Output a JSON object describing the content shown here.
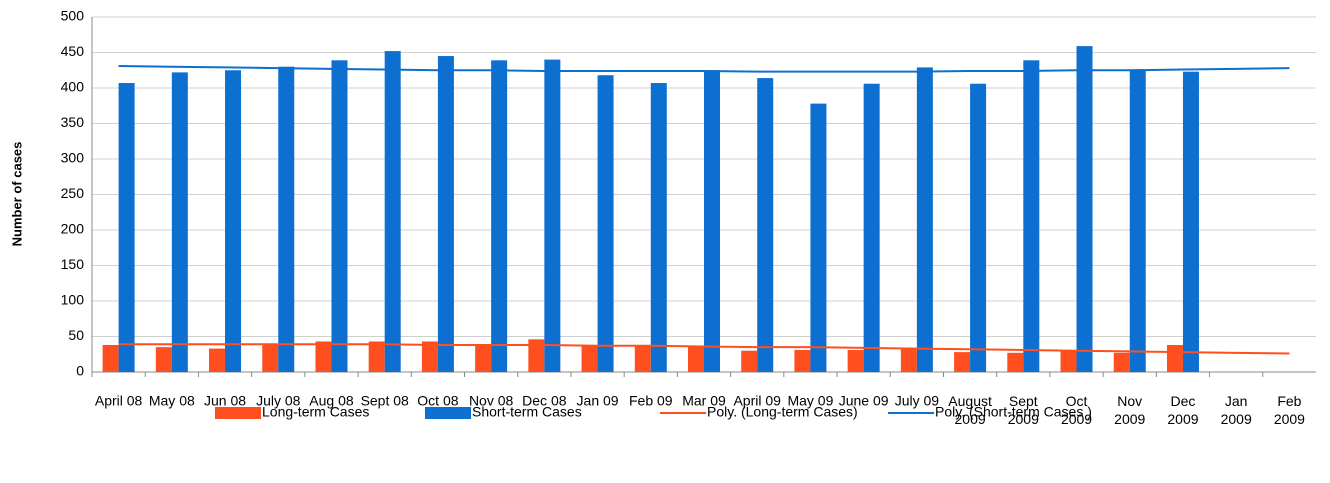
{
  "chart_data": {
    "type": "bar",
    "y_label": "Number of cases",
    "categories": [
      "April 08",
      "May 08",
      "Jun 08",
      "July 08",
      "Aug 08",
      "Sept 08",
      "Oct 08",
      "Nov 08",
      "Dec 08",
      "Jan 09",
      "Feb 09",
      "Mar 09",
      "April 09",
      "May 09",
      "June 09",
      "July 09",
      "August 2009",
      "Sept 2009",
      "Oct 2009",
      "Nov 2009",
      "Dec 2009",
      "Jan 2009",
      "Feb 2009"
    ],
    "series": [
      {
        "name": "Long-term Cases",
        "color": "#ff4f1f",
        "kind": "bar",
        "values": [
          38,
          35,
          33,
          38,
          43,
          43,
          43,
          38,
          46,
          37,
          38,
          37,
          30,
          31,
          31,
          34,
          28,
          27,
          31,
          27,
          38,
          null,
          null
        ]
      },
      {
        "name": "Short-term Cases",
        "color": "#0d6fcf",
        "kind": "bar",
        "values": [
          407,
          422,
          425,
          430,
          439,
          452,
          445,
          439,
          440,
          418,
          407,
          425,
          414,
          378,
          406,
          429,
          406,
          439,
          459,
          425,
          423,
          null,
          null
        ]
      },
      {
        "name": "Poly. (Long-term Cases)",
        "color": "#ff4f1f",
        "kind": "line",
        "values": [
          39,
          39,
          39,
          39,
          39,
          39,
          38,
          38,
          38,
          37,
          37,
          36,
          35,
          35,
          34,
          33,
          32,
          31,
          30,
          29,
          28,
          27,
          26
        ]
      },
      {
        "name": "Poly. (Short-term Cases )",
        "color": "#0d6fcf",
        "kind": "line",
        "values": [
          431,
          430,
          429,
          428,
          427,
          426,
          425,
          425,
          424,
          424,
          424,
          424,
          423,
          423,
          423,
          423,
          424,
          424,
          425,
          425,
          426,
          427,
          428
        ]
      }
    ],
    "ylim": [
      0,
      500
    ],
    "yticks": [
      0,
      50,
      100,
      150,
      200,
      250,
      300,
      350,
      400,
      450,
      500
    ],
    "grid": true,
    "legend": "bottom"
  }
}
